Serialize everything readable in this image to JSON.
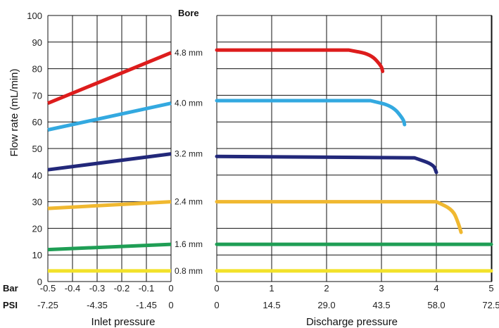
{
  "chart_data": {
    "type": "line",
    "ylabel": "Flow rate (mL/min)",
    "ylim": [
      0,
      100
    ],
    "yticks": [
      "0",
      "10",
      "20",
      "30",
      "40",
      "50",
      "60",
      "70",
      "80",
      "90",
      "100"
    ],
    "bore_header": "Bore",
    "row_label_bar": "Bar",
    "row_label_psi": "PSI",
    "inlet": {
      "xlabel": "Inlet pressure",
      "xlim": [
        -0.5,
        0
      ],
      "bar_ticks": [
        "-0.5",
        "-0.4",
        "-0.3",
        "-0.2",
        "-0.1",
        "0"
      ],
      "psi_ticks": [
        {
          "bar": -0.5,
          "label": "-7.25"
        },
        {
          "bar": -0.3,
          "label": "-4.35"
        },
        {
          "bar": -0.1,
          "label": "-1.45"
        },
        {
          "bar": 0,
          "label": "0"
        }
      ]
    },
    "discharge": {
      "xlabel": "Discharge pressure",
      "xlim": [
        0,
        5
      ],
      "bar_ticks": [
        "0",
        "1",
        "2",
        "3",
        "4",
        "5"
      ],
      "psi_ticks": [
        "0",
        "14.5",
        "29.0",
        "43.5",
        "58.0",
        "72.5"
      ]
    },
    "series": [
      {
        "name": "4.8 mm",
        "color": "#dd1c1c",
        "inlet": [
          [
            -0.5,
            67
          ],
          [
            0,
            86
          ]
        ],
        "discharge": [
          [
            0,
            87
          ],
          [
            2.4,
            87
          ],
          [
            2.8,
            85.5
          ],
          [
            3.0,
            81
          ],
          [
            3.02,
            79
          ]
        ]
      },
      {
        "name": "4.0 mm",
        "color": "#33a9e0",
        "inlet": [
          [
            -0.5,
            57
          ],
          [
            0,
            67
          ]
        ],
        "discharge": [
          [
            0,
            68
          ],
          [
            2.8,
            68
          ],
          [
            3.2,
            66
          ],
          [
            3.4,
            61
          ],
          [
            3.42,
            59
          ]
        ]
      },
      {
        "name": "3.2 mm",
        "color": "#22287a",
        "inlet": [
          [
            -0.5,
            42
          ],
          [
            0,
            48
          ]
        ],
        "discharge": [
          [
            0,
            47
          ],
          [
            3.6,
            46.5
          ],
          [
            3.95,
            44
          ],
          [
            4.0,
            41
          ]
        ]
      },
      {
        "name": "2.4 mm",
        "color": "#f0b830",
        "inlet": [
          [
            -0.5,
            27.5
          ],
          [
            0,
            30
          ]
        ],
        "discharge": [
          [
            0,
            30
          ],
          [
            4.0,
            30
          ],
          [
            4.3,
            27
          ],
          [
            4.4,
            22
          ],
          [
            4.45,
            18.5
          ]
        ]
      },
      {
        "name": "1.6 mm",
        "color": "#1f9e55",
        "inlet": [
          [
            -0.5,
            12
          ],
          [
            0,
            14
          ]
        ],
        "discharge": [
          [
            0,
            14
          ],
          [
            5,
            14
          ]
        ]
      },
      {
        "name": "0.8 mm",
        "color": "#f2e22a",
        "inlet": [
          [
            -0.5,
            4
          ],
          [
            0,
            4
          ]
        ],
        "discharge": [
          [
            0,
            4
          ],
          [
            5,
            4
          ]
        ]
      }
    ]
  }
}
